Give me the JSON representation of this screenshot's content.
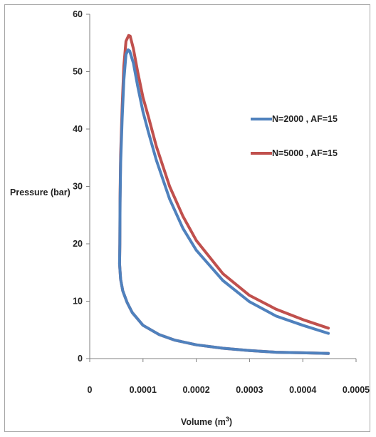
{
  "chart_data": {
    "type": "line",
    "xlabel": "Volume (m",
    "xlabel_sup": "3",
    "xlabel_close": ")",
    "ylabel": "Pressure (bar)",
    "xlim": [
      0,
      0.0005
    ],
    "ylim": [
      0,
      60
    ],
    "xticks": [
      "0",
      "0.0001",
      "0.0002",
      "0.0003",
      "0.0004",
      "0.0005"
    ],
    "yticks": [
      "0",
      "10",
      "20",
      "30",
      "40",
      "50",
      "60"
    ],
    "legend_position": "right",
    "grid": false,
    "series": [
      {
        "name": "N=2000 , AF=15",
        "color": "#4f81bd",
        "x": [
          0.000448,
          0.0004,
          0.00035,
          0.0003,
          0.00025,
          0.0002,
          0.000175,
          0.00015,
          0.000125,
          0.00011,
          0.0001,
          9e-05,
          8.2e-05,
          7.5e-05,
          7.2e-05,
          6.8e-05,
          6.4e-05,
          6.1e-05,
          5.8e-05,
          5.7e-05,
          5.65e-05,
          5.6e-05,
          5.8e-05,
          6.2e-05,
          7e-05,
          8e-05,
          0.0001,
          0.00013,
          0.00016,
          0.0002,
          0.00025,
          0.0003,
          0.00035,
          0.0004,
          0.000448
        ],
        "y": [
          4.4,
          5.8,
          7.4,
          9.9,
          13.6,
          18.9,
          22.7,
          27.8,
          34.6,
          39.5,
          43.0,
          47.5,
          51.5,
          53.6,
          53.8,
          53.0,
          48.5,
          42.0,
          34.0,
          27.0,
          20.0,
          16.5,
          13.8,
          11.8,
          9.8,
          8.0,
          5.8,
          4.2,
          3.2,
          2.4,
          1.8,
          1.4,
          1.1,
          1.0,
          0.9
        ]
      },
      {
        "name": "N=5000 , AF=15",
        "color": "#c0504d",
        "x": [
          0.000448,
          0.0004,
          0.00035,
          0.0003,
          0.00025,
          0.0002,
          0.000175,
          0.00015,
          0.000125,
          0.00011,
          0.0001,
          9e-05,
          8.2e-05,
          7.6e-05,
          7.3e-05,
          6.8e-05,
          6.4e-05,
          6.1e-05,
          5.8e-05,
          5.7e-05,
          5.65e-05,
          5.6e-05,
          5.8e-05,
          6.2e-05,
          7e-05,
          8e-05,
          0.0001,
          0.00013,
          0.00016,
          0.0002,
          0.00025,
          0.0003,
          0.00035,
          0.0004,
          0.000448
        ],
        "y": [
          5.3,
          6.8,
          8.6,
          11.0,
          14.8,
          20.6,
          24.8,
          30.0,
          37.0,
          42.2,
          45.5,
          50.0,
          54.0,
          56.2,
          56.3,
          55.3,
          51.0,
          44.0,
          35.5,
          28.0,
          20.0,
          16.5,
          13.8,
          11.8,
          9.8,
          8.0,
          5.8,
          4.2,
          3.2,
          2.4,
          1.8,
          1.4,
          1.1,
          1.0,
          0.9
        ]
      }
    ]
  }
}
